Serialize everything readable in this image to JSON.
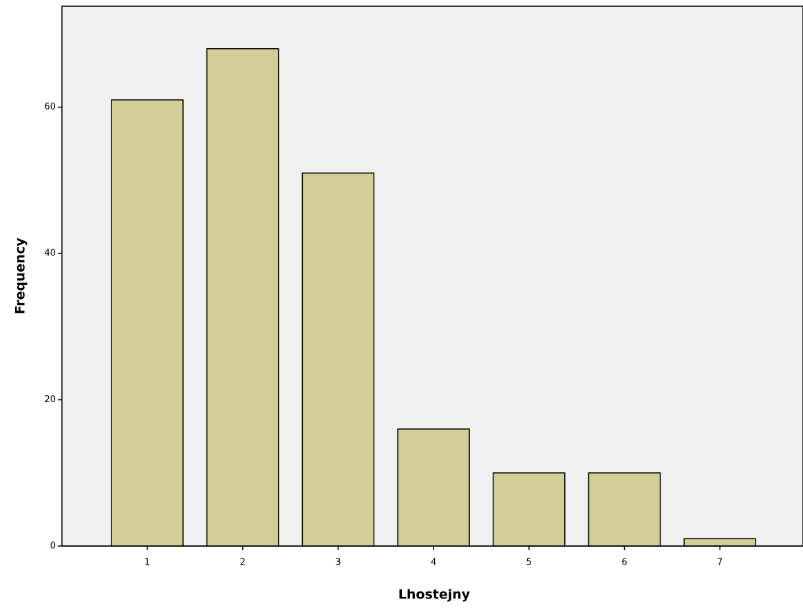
{
  "chart_data": {
    "type": "bar",
    "x_label": "Lhostejny",
    "y_label": "Frequency",
    "categories": [
      "1",
      "2",
      "3",
      "4",
      "5",
      "6",
      "7"
    ],
    "values": [
      61,
      68,
      51,
      16,
      10,
      10,
      1
    ],
    "color": "#d3ce97",
    "ylim": [
      0,
      74
    ],
    "yticks": [
      0,
      20,
      40,
      60
    ]
  }
}
